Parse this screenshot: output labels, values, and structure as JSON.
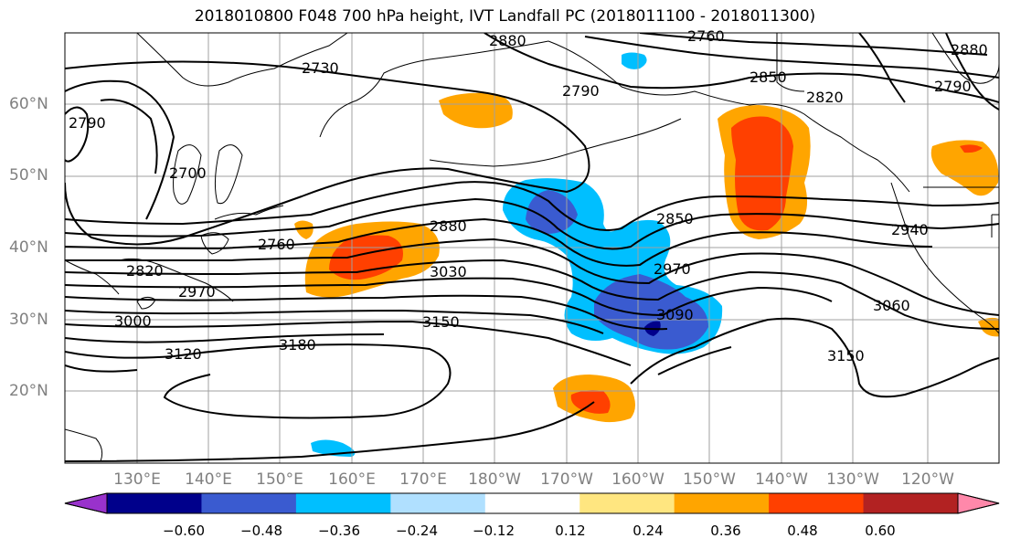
{
  "title": "2018010800 F048 700 hPa height, IVT Landfall PC (2018011100 - 2018011300)",
  "lat_labels": [
    "60°N",
    "50°N",
    "40°N",
    "30°N",
    "20°N"
  ],
  "lon_labels": [
    "130°E",
    "140°E",
    "150°E",
    "160°E",
    "170°E",
    "180°W",
    "170°W",
    "160°W",
    "150°W",
    "140°W",
    "130°W",
    "120°W"
  ],
  "contour_labels": [
    "2880",
    "2850",
    "2820",
    "2790",
    "2760",
    "2730",
    "2700",
    "2790",
    "2760",
    "2820",
    "2970",
    "3000",
    "3120",
    "3180",
    "3150",
    "3030",
    "2880",
    "2850",
    "2970",
    "3090",
    "2940",
    "3060",
    "3150",
    "2880",
    "2790"
  ],
  "colorbar": {
    "ticks": [
      "−0.60",
      "−0.48",
      "−0.36",
      "−0.24",
      "−0.12",
      "0.12",
      "0.24",
      "0.36",
      "0.48",
      "0.60"
    ],
    "colors": [
      "#9932CC",
      "#00008B",
      "#3A5BD0",
      "#00BFFF",
      "#B0E0FF",
      "#FFFFFF",
      "#FFE680",
      "#FFA500",
      "#FF4000",
      "#B22222",
      "#FF88AA"
    ]
  }
}
